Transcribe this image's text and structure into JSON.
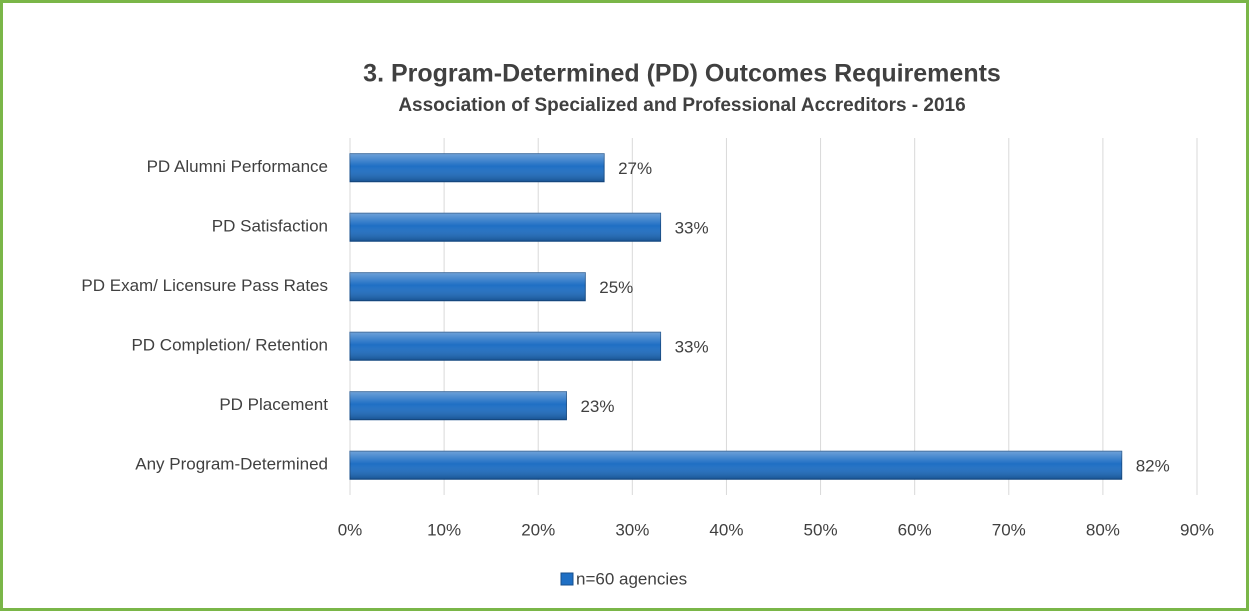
{
  "chart_data": {
    "type": "bar",
    "orientation": "horizontal",
    "title": "3. Program-Determined (PD) Outcomes Requirements",
    "subtitle": "Association of Specialized and Professional Accreditors - 2016",
    "categories": [
      "PD Alumni Performance",
      "PD Satisfaction",
      "PD Exam/ Licensure Pass Rates",
      "PD Completion/ Retention",
      "PD Placement",
      "Any Program-Determined"
    ],
    "series": [
      {
        "name": "n=60 agencies",
        "color": "#1f6fc4",
        "values": [
          27,
          33,
          25,
          33,
          23,
          82
        ],
        "value_labels": [
          "27%",
          "33%",
          "25%",
          "33%",
          "23%",
          "82%"
        ]
      }
    ],
    "xlim": [
      0,
      90
    ],
    "xticks": [
      {
        "value": 0,
        "label": "0%"
      },
      {
        "value": 10,
        "label": "10%"
      },
      {
        "value": 20,
        "label": "20%"
      },
      {
        "value": 30,
        "label": "30%"
      },
      {
        "value": 40,
        "label": "40%"
      },
      {
        "value": 50,
        "label": "50%"
      },
      {
        "value": 60,
        "label": "60%"
      },
      {
        "value": 70,
        "label": "70%"
      },
      {
        "value": 80,
        "label": "80%"
      },
      {
        "value": 90,
        "label": "90%"
      }
    ],
    "grid": true,
    "legend": "bottom"
  }
}
